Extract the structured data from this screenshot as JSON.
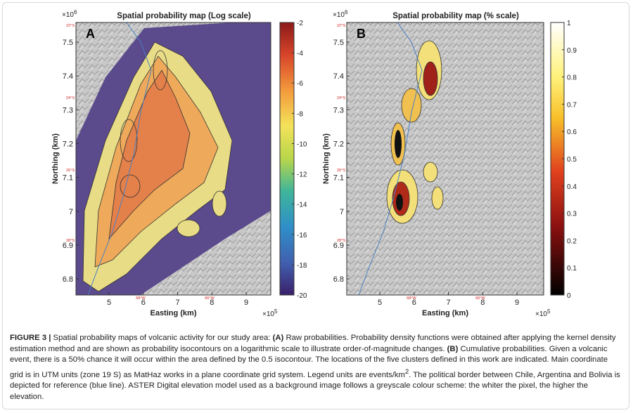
{
  "panels": [
    {
      "letter": "A",
      "title": "Spatial probability map (Log scale)",
      "y_multiplier": "×10",
      "y_exponent": "6",
      "x_multiplier": "×10",
      "x_exponent": "5",
      "xlabel": "Easting (km)",
      "ylabel": "Northing (km)",
      "xticks": [
        "5",
        "6",
        "7",
        "8",
        "9"
      ],
      "yticks": [
        "7.5",
        "7.4",
        "7.3",
        "7.2",
        "7.1",
        "7",
        "6.9",
        "6.8"
      ],
      "colorbar_ticks": [
        "-2",
        "-4",
        "-6",
        "-8",
        "-10",
        "-12",
        "-14",
        "-16",
        "-18",
        "-20"
      ],
      "lat_labels": [
        "22°S",
        "24°S",
        "26°S",
        "28°S"
      ],
      "lon_labels": [
        "68°W",
        "66°W"
      ]
    },
    {
      "letter": "B",
      "title": "Spatial probability map (% scale)",
      "y_multiplier": "×10",
      "y_exponent": "6",
      "x_multiplier": "×10",
      "x_exponent": "5",
      "xlabel": "Easting (km)",
      "ylabel": "Northing (km)",
      "xticks": [
        "5",
        "6",
        "7",
        "8",
        "9"
      ],
      "yticks": [
        "7.5",
        "7.4",
        "7.3",
        "7.2",
        "7.1",
        "7",
        "6.9",
        "6.8"
      ],
      "colorbar_ticks": [
        "1",
        "0.9",
        "0.8",
        "0.7",
        "0.6",
        "0.5",
        "0.4",
        "0.3",
        "0.2",
        "0.1",
        "0"
      ],
      "lat_labels": [
        "22°S",
        "24°S",
        "26°S",
        "28°S"
      ],
      "lon_labels": [
        "68°W",
        "66°W"
      ]
    }
  ],
  "caption": {
    "figure_label": "FIGURE 3 |",
    "intro": " Spatial probability maps of volcanic activity for our study area: ",
    "label_a": "(A)",
    "text_a": " Raw probabilities. Probability density functions were obtained after applying the kernel density estimation method and are shown as probability isocontours on a logarithmic scale to illustrate order-of-magnitude changes. ",
    "label_b": "(B)",
    "text_b": " Cumulative probabilities. Given a volcanic event, there is a 50% chance it will occur within the area defined by the 0.5 isocontour. The locations of the five clusters defined in this work are indicated. Main coordinate grid is in UTM units (zone 19 S) as MatHaz works in a plane coordinate grid system. Legend units are events/km",
    "superscript": "2",
    "text_end": ". The political border between Chile, Argentina and Bolivia is depicted for reference (blue line). ASTER Digital elevation model used as a background image follows a greyscale colour scheme: the whiter the pixel, the higher the elevation."
  }
}
